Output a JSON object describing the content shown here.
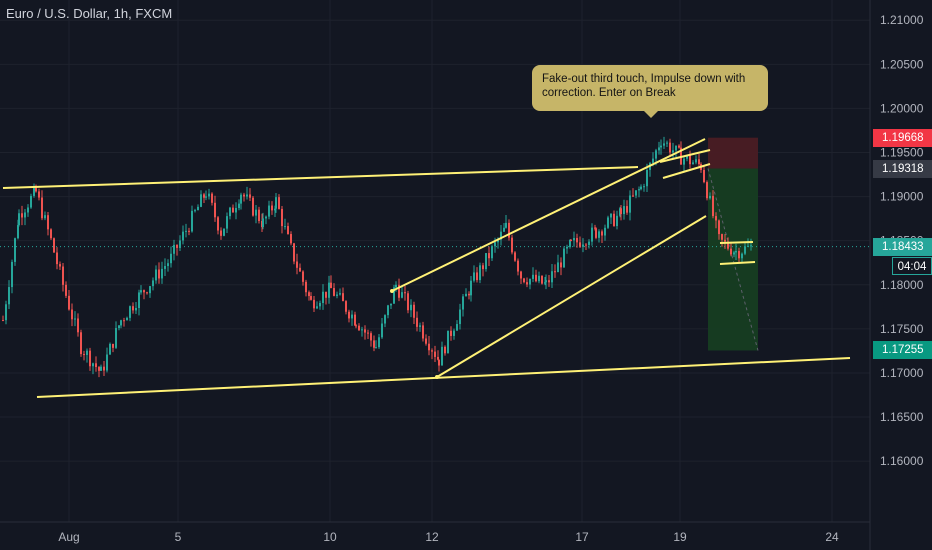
{
  "header": {
    "title": "Euro / U.S. Dollar, 1h, FXCM"
  },
  "annotation": {
    "text": "Fake-out third touch, Impulse down with correction. Enter on Break"
  },
  "colors": {
    "background": "#131722",
    "up": "#26a69a",
    "down": "#ef5350",
    "trendline": "#fff176",
    "stop_zone": "#4a1c24",
    "target_zone": "#163d22",
    "grid": "#1e222d"
  },
  "price_badges": [
    {
      "label": "1.19668",
      "value": 1.19668,
      "color": "#f23645"
    },
    {
      "label": "1.19318",
      "value": 1.19318,
      "color": "#363a45"
    },
    {
      "label": "1.18433",
      "value": 1.18433,
      "color": "#26a69a"
    },
    {
      "label": "1.17255",
      "value": 1.17255,
      "color": "#089981"
    }
  ],
  "countdown": "04:04",
  "chart_data": {
    "type": "candlestick",
    "symbol": "EURUSD",
    "timeframe": "1h",
    "y_axis": {
      "ticks": [
        "1.21000",
        "1.20500",
        "1.20000",
        "1.19500",
        "1.19000",
        "1.18500",
        "1.18000",
        "1.17500",
        "1.17000",
        "1.16500",
        "1.16000"
      ],
      "range": [
        1.1565,
        1.2115
      ]
    },
    "x_axis": {
      "ticks": [
        "Aug",
        "5",
        "10",
        "12",
        "17",
        "19",
        "24"
      ]
    },
    "price_path": [
      [
        "Aug 1",
        1.176
      ],
      [
        "Aug 2",
        1.188
      ],
      [
        "Aug 2",
        1.1905
      ],
      [
        "Aug 3",
        1.185
      ],
      [
        "Aug 3",
        1.18
      ],
      [
        "Aug 4",
        1.173
      ],
      [
        "Aug 4",
        1.17
      ],
      [
        "Aug 5",
        1.176
      ],
      [
        "Aug 5",
        1.179
      ],
      [
        "Aug 6",
        1.183
      ],
      [
        "Aug 6",
        1.1905
      ],
      [
        "Aug 7",
        1.186
      ],
      [
        "Aug 7",
        1.1905
      ],
      [
        "Aug 8",
        1.187
      ],
      [
        "Aug 8",
        1.1895
      ],
      [
        "Aug 9",
        1.184
      ],
      [
        "Aug 9",
        1.178
      ],
      [
        "Aug 10",
        1.1795
      ],
      [
        "Aug 10",
        1.176
      ],
      [
        "Aug 11",
        1.173
      ],
      [
        "Aug 11",
        1.18
      ],
      [
        "Aug 11",
        1.177
      ],
      [
        "Aug 12",
        1.1715
      ],
      [
        "Aug 13",
        1.18
      ],
      [
        "Aug 13",
        1.1865
      ],
      [
        "Aug 14",
        1.181
      ],
      [
        "Aug 15",
        1.18
      ],
      [
        "Aug 16",
        1.1845
      ],
      [
        "Aug 17",
        1.186
      ],
      [
        "Aug 17",
        1.188
      ],
      [
        "Aug 18",
        1.191
      ],
      [
        "Aug 18",
        1.1965
      ],
      [
        "Aug 19",
        1.1945
      ],
      [
        "Aug 19",
        1.1935
      ],
      [
        "Aug 20",
        1.185
      ],
      [
        "Aug 20",
        1.1838
      ],
      [
        "Aug 20",
        1.1843
      ]
    ],
    "trendlines": [
      {
        "name": "upper-channel",
        "from": [
          "Jul 30",
          1.191
        ],
        "to": [
          "Aug 18",
          1.1932
        ]
      },
      {
        "name": "lower-channel",
        "from": [
          "Jul 30",
          1.1692
        ],
        "to": [
          "Aug 23",
          1.1727
        ]
      },
      {
        "name": "rising-upper",
        "from": [
          "Aug 11",
          1.181
        ],
        "to": [
          "Aug 19",
          1.196
        ]
      },
      {
        "name": "rising-lower",
        "from": [
          "Aug 12",
          1.1713
        ],
        "to": [
          "Aug 19",
          1.1895
        ]
      },
      {
        "name": "flag-top",
        "from": [
          "Aug 18",
          1.1945
        ],
        "to": [
          "Aug 19",
          1.1932
        ]
      },
      {
        "name": "flag-top-2",
        "from": [
          "Aug 18",
          1.1922
        ],
        "to": [
          "Aug 19",
          1.1935
        ]
      },
      {
        "name": "consolidation-top",
        "from": [
          "Aug 20",
          1.1852
        ],
        "to": [
          "Aug 21",
          1.1853
        ]
      },
      {
        "name": "consolidation-bottom",
        "from": [
          "Aug 20",
          1.1835
        ],
        "to": [
          "Aug 21",
          1.1836
        ]
      }
    ],
    "position": {
      "entry": 1.19318,
      "stop": 1.19668,
      "target": 1.17255,
      "current": 1.18433
    }
  }
}
